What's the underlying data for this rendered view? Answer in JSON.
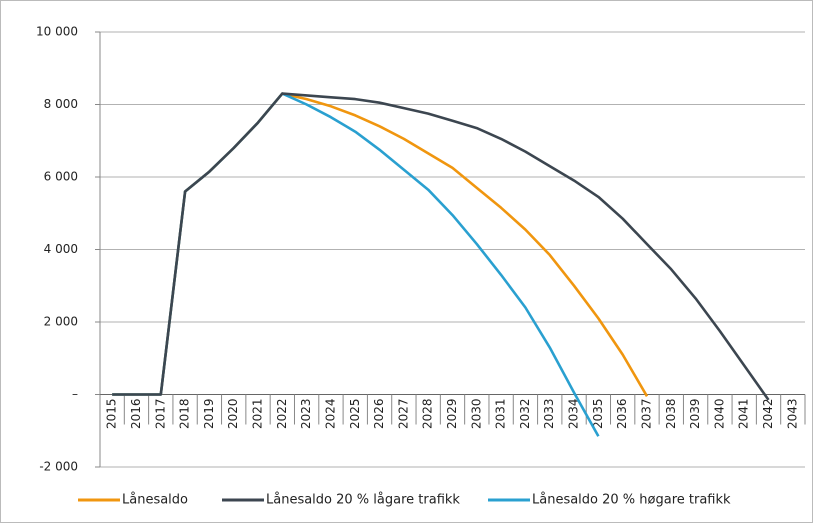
{
  "chart_data": {
    "type": "line",
    "categories": [
      "2015",
      "2016",
      "2017",
      "2018",
      "2019",
      "2020",
      "2021",
      "2022",
      "2023",
      "2024",
      "2025",
      "2026",
      "2027",
      "2028",
      "2029",
      "2030",
      "2031",
      "2032",
      "2033",
      "2034",
      "2035",
      "2036",
      "2037",
      "2038",
      "2039",
      "2040",
      "2041",
      "2042",
      "2043"
    ],
    "series": [
      {
        "name": "Lånesaldo",
        "color": "#f0960f",
        "values": [
          0,
          0,
          0,
          5600,
          6150,
          6800,
          7500,
          8300,
          8150,
          7950,
          7700,
          7400,
          7050,
          6650,
          6250,
          5700,
          5150,
          4550,
          3850,
          3000,
          2100,
          1100,
          -50,
          null,
          null,
          null,
          null,
          null,
          null
        ]
      },
      {
        "name": "Lånesaldo 20 % lågare trafikk",
        "color": "#3c4650",
        "values": [
          0,
          0,
          0,
          5600,
          6150,
          6800,
          7500,
          8300,
          8250,
          8200,
          8150,
          8050,
          7900,
          7750,
          7550,
          7350,
          7050,
          6700,
          6300,
          5900,
          5450,
          4850,
          4150,
          3450,
          2650,
          1750,
          800,
          -150,
          null
        ]
      },
      {
        "name": "Lånesaldo 20 % høgare trafikk",
        "color": "#2aa0d0",
        "values": [
          0,
          0,
          0,
          5600,
          6150,
          6800,
          7500,
          8300,
          8000,
          7650,
          7250,
          6750,
          6200,
          5650,
          4950,
          4150,
          3300,
          2400,
          1300,
          50,
          -1150,
          null,
          null,
          null,
          null,
          null,
          null,
          null,
          null
        ]
      }
    ],
    "ylim": [
      -2000,
      10000
    ],
    "yticks": [
      {
        "value": -2000,
        "label": "-2 000"
      },
      {
        "value": 0,
        "label": "–"
      },
      {
        "value": 2000,
        "label": "2 000"
      },
      {
        "value": 4000,
        "label": "4 000"
      },
      {
        "value": 6000,
        "label": "6 000"
      },
      {
        "value": 8000,
        "label": "8 000"
      },
      {
        "value": 10000,
        "label": "10 000"
      }
    ],
    "grid": true,
    "legend": "bottom"
  }
}
